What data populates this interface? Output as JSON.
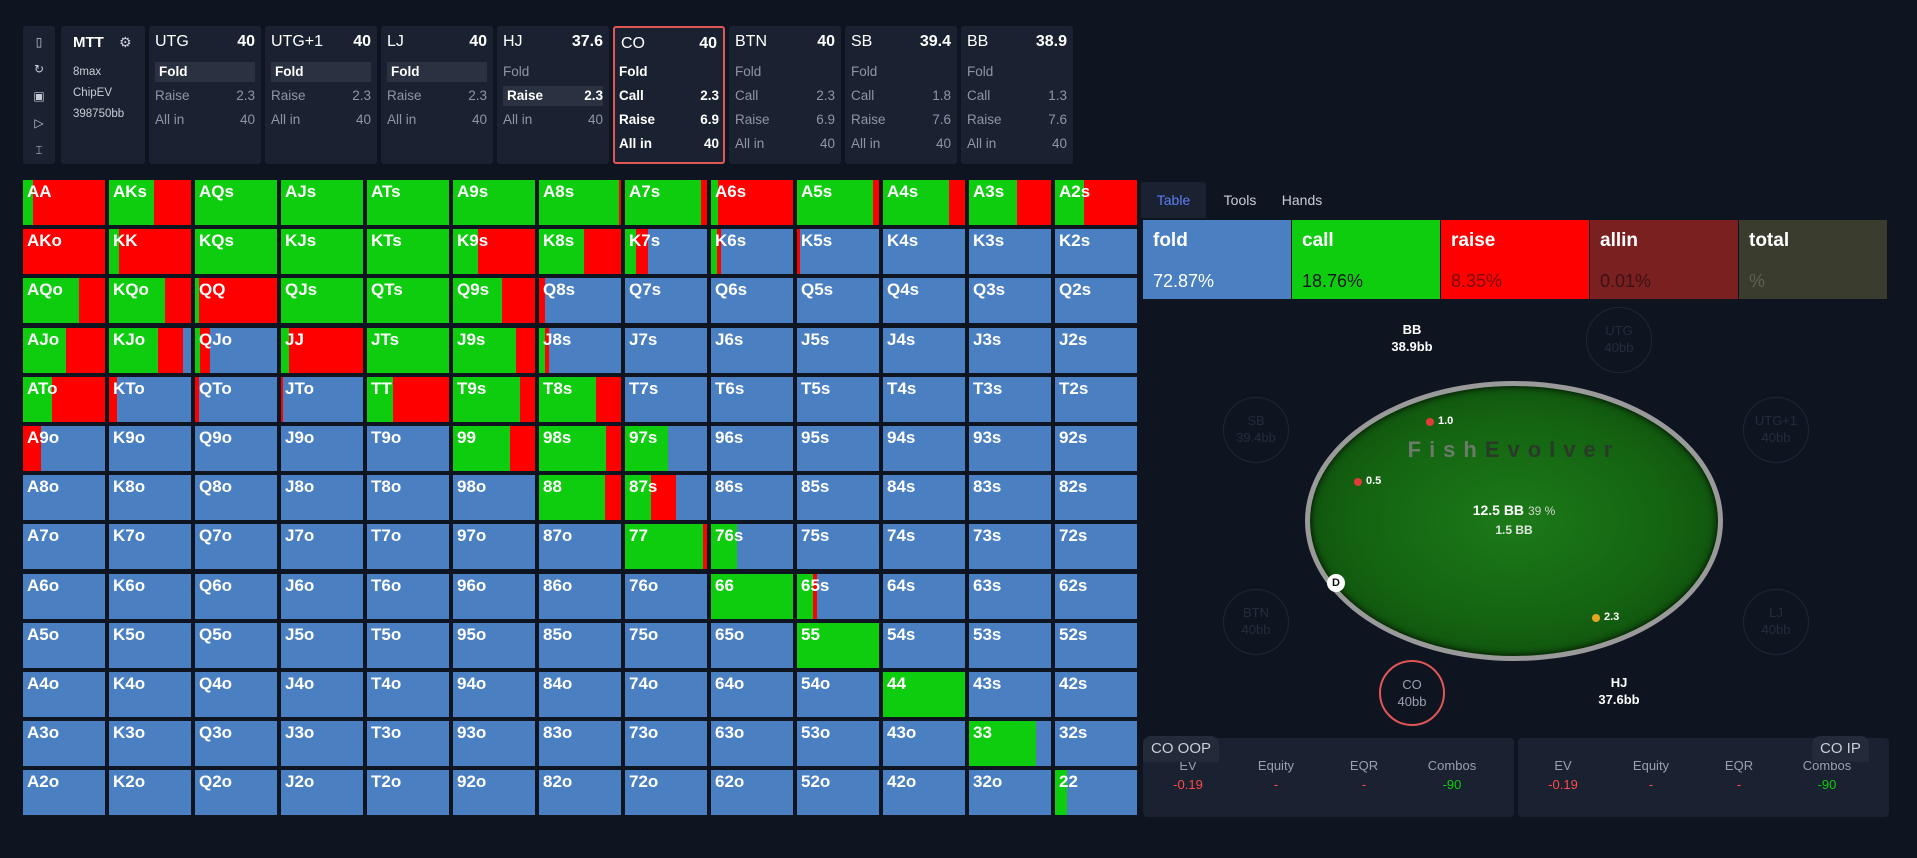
{
  "toolbar": {
    "icons": [
      "file-icon",
      "refresh-icon",
      "save-icon",
      "play-icon",
      "text-cursor-icon"
    ],
    "glyphs": [
      "▯",
      "↻",
      "▣",
      "▷",
      "⌶"
    ]
  },
  "game": {
    "title": "MTT",
    "settings_glyph": "⚙",
    "subtitle": "8max",
    "model": "ChipEV",
    "stack": "398750bb"
  },
  "positions": [
    {
      "name": "UTG",
      "stack": "40",
      "actions": [
        {
          "label": "Fold",
          "value": "",
          "state": "sel"
        },
        {
          "label": "Raise",
          "value": "2.3",
          "state": ""
        },
        {
          "label": "All in",
          "value": "40",
          "state": ""
        }
      ]
    },
    {
      "name": "UTG+1",
      "stack": "40",
      "actions": [
        {
          "label": "Fold",
          "value": "",
          "state": "sel"
        },
        {
          "label": "Raise",
          "value": "2.3",
          "state": ""
        },
        {
          "label": "All in",
          "value": "40",
          "state": ""
        }
      ]
    },
    {
      "name": "LJ",
      "stack": "40",
      "actions": [
        {
          "label": "Fold",
          "value": "",
          "state": "sel"
        },
        {
          "label": "Raise",
          "value": "2.3",
          "state": ""
        },
        {
          "label": "All in",
          "value": "40",
          "state": ""
        }
      ]
    },
    {
      "name": "HJ",
      "stack": "37.6",
      "actions": [
        {
          "label": "Fold",
          "value": "",
          "state": ""
        },
        {
          "label": "Raise",
          "value": "2.3",
          "state": "sel"
        },
        {
          "label": "All in",
          "value": "40",
          "state": ""
        }
      ]
    },
    {
      "name": "CO",
      "stack": "40",
      "active": true,
      "actions": [
        {
          "label": "Fold",
          "value": "",
          "state": "hi"
        },
        {
          "label": "Call",
          "value": "2.3",
          "state": "hi"
        },
        {
          "label": "Raise",
          "value": "6.9",
          "state": "hi"
        },
        {
          "label": "All in",
          "value": "40",
          "state": "hi"
        }
      ]
    },
    {
      "name": "BTN",
      "stack": "40",
      "actions": [
        {
          "label": "Fold",
          "value": "",
          "state": ""
        },
        {
          "label": "Call",
          "value": "2.3",
          "state": ""
        },
        {
          "label": "Raise",
          "value": "6.9",
          "state": ""
        },
        {
          "label": "All in",
          "value": "40",
          "state": ""
        }
      ]
    },
    {
      "name": "SB",
      "stack": "39.4",
      "actions": [
        {
          "label": "Fold",
          "value": "",
          "state": ""
        },
        {
          "label": "Call",
          "value": "1.8",
          "state": ""
        },
        {
          "label": "Raise",
          "value": "7.6",
          "state": ""
        },
        {
          "label": "All in",
          "value": "40",
          "state": ""
        }
      ]
    },
    {
      "name": "BB",
      "stack": "38.9",
      "actions": [
        {
          "label": "Fold",
          "value": "",
          "state": ""
        },
        {
          "label": "Call",
          "value": "1.3",
          "state": ""
        },
        {
          "label": "Raise",
          "value": "7.6",
          "state": ""
        },
        {
          "label": "All in",
          "value": "40",
          "state": ""
        }
      ]
    }
  ],
  "colors": {
    "fold": "#4a7fc1",
    "call": "#0ecd0e",
    "raise": "#ff0000",
    "allin": "#7a2020",
    "total": "#3a3d2e"
  },
  "grid": {
    "labels": [
      [
        "AA",
        "AKs",
        "AQs",
        "AJs",
        "ATs",
        "A9s",
        "A8s",
        "A7s",
        "A6s",
        "A5s",
        "A4s",
        "A3s",
        "A2s"
      ],
      [
        "AKo",
        "KK",
        "KQs",
        "KJs",
        "KTs",
        "K9s",
        "K8s",
        "K7s",
        "K6s",
        "K5s",
        "K4s",
        "K3s",
        "K2s"
      ],
      [
        "AQo",
        "KQo",
        "QQ",
        "QJs",
        "QTs",
        "Q9s",
        "Q8s",
        "Q7s",
        "Q6s",
        "Q5s",
        "Q4s",
        "Q3s",
        "Q2s"
      ],
      [
        "AJo",
        "KJo",
        "QJo",
        "JJ",
        "JTs",
        "J9s",
        "J8s",
        "J7s",
        "J6s",
        "J5s",
        "J4s",
        "J3s",
        "J2s"
      ],
      [
        "ATo",
        "KTo",
        "QTo",
        "JTo",
        "TT",
        "T9s",
        "T8s",
        "T7s",
        "T6s",
        "T5s",
        "T4s",
        "T3s",
        "T2s"
      ],
      [
        "A9o",
        "K9o",
        "Q9o",
        "J9o",
        "T9o",
        "99",
        "98s",
        "97s",
        "96s",
        "95s",
        "94s",
        "93s",
        "92s"
      ],
      [
        "A8o",
        "K8o",
        "Q8o",
        "J8o",
        "T8o",
        "98o",
        "88",
        "87s",
        "86s",
        "85s",
        "84s",
        "83s",
        "82s"
      ],
      [
        "A7o",
        "K7o",
        "Q7o",
        "J7o",
        "T7o",
        "97o",
        "87o",
        "77",
        "76s",
        "75s",
        "74s",
        "73s",
        "72s"
      ],
      [
        "A6o",
        "K6o",
        "Q6o",
        "J6o",
        "T6o",
        "96o",
        "86o",
        "76o",
        "66",
        "65s",
        "64s",
        "63s",
        "62s"
      ],
      [
        "A5o",
        "K5o",
        "Q5o",
        "J5o",
        "T5o",
        "95o",
        "85o",
        "75o",
        "65o",
        "55",
        "54s",
        "53s",
        "52s"
      ],
      [
        "A4o",
        "K4o",
        "Q4o",
        "J4o",
        "T4o",
        "94o",
        "84o",
        "74o",
        "64o",
        "54o",
        "44",
        "43s",
        "42s"
      ],
      [
        "A3o",
        "K3o",
        "Q3o",
        "J3o",
        "T3o",
        "93o",
        "83o",
        "73o",
        "63o",
        "53o",
        "43o",
        "33",
        "32s"
      ],
      [
        "A2o",
        "K2o",
        "Q2o",
        "J2o",
        "T2o",
        "92o",
        "82o",
        "72o",
        "62o",
        "52o",
        "42o",
        "32o",
        "22"
      ]
    ],
    "freqs": {
      "AA": [
        0,
        0.12,
        0.88
      ],
      "AKs": [
        0,
        0.55,
        0.45
      ],
      "AQs": [
        0,
        1,
        0
      ],
      "AJs": [
        0,
        1,
        0
      ],
      "ATs": [
        0,
        1,
        0
      ],
      "A9s": [
        0,
        1,
        0
      ],
      "A8s": [
        0,
        0.97,
        0.03
      ],
      "A7s": [
        0,
        0.93,
        0.07
      ],
      "A6s": [
        0,
        0.08,
        0.92
      ],
      "A5s": [
        0,
        0.93,
        0.07
      ],
      "A4s": [
        0,
        0.8,
        0.2
      ],
      "A3s": [
        0,
        0.58,
        0.42
      ],
      "A2s": [
        0,
        0.35,
        0.65
      ],
      "AKo": [
        0,
        0,
        1
      ],
      "KK": [
        0,
        0.12,
        0.88
      ],
      "KQs": [
        0,
        1,
        0
      ],
      "KJs": [
        0,
        1,
        0
      ],
      "KTs": [
        0,
        1,
        0
      ],
      "K9s": [
        0,
        0.3,
        0.7
      ],
      "K8s": [
        0,
        0.55,
        0.45
      ],
      "K7s": [
        0.72,
        0.13,
        0.15
      ],
      "K6s": [
        0.88,
        0.07,
        0.05
      ],
      "K5s": [
        0.96,
        0,
        0.04
      ],
      "AQo": [
        0,
        0.68,
        0.32
      ],
      "KQo": [
        0,
        0.68,
        0.32
      ],
      "QQ": [
        0,
        0.05,
        0.95
      ],
      "QJs": [
        0,
        1,
        0
      ],
      "QTs": [
        0,
        1,
        0
      ],
      "Q9s": [
        0,
        0.6,
        0.4
      ],
      "Q8s": [
        0.93,
        0,
        0.07
      ],
      "AJo": [
        0,
        0.52,
        0.48
      ],
      "KJo": [
        0.1,
        0.6,
        0.3
      ],
      "QJo": [
        0.82,
        0.06,
        0.12
      ],
      "JJ": [
        0,
        0.1,
        0.9
      ],
      "JTs": [
        0,
        1,
        0
      ],
      "J9s": [
        0,
        0.77,
        0.23
      ],
      "J8s": [
        0.88,
        0.07,
        0.05
      ],
      "ATo": [
        0,
        0.35,
        0.65
      ],
      "KTo": [
        0.9,
        0,
        0.1
      ],
      "QTo": [
        0.95,
        0,
        0.05
      ],
      "JTo": [
        0.97,
        0,
        0.03
      ],
      "TT": [
        0,
        0.32,
        0.68
      ],
      "T9s": [
        0,
        0.82,
        0.18
      ],
      "T8s": [
        0,
        0.7,
        0.3
      ],
      "A9o": [
        0.78,
        0,
        0.22
      ],
      "99": [
        0,
        0.7,
        0.3
      ],
      "98s": [
        0,
        0.82,
        0.18
      ],
      "97s": [
        0.48,
        0.52,
        0
      ],
      "88": [
        0,
        0.8,
        0.2
      ],
      "87s": [
        0.38,
        0.32,
        0.3
      ],
      "77": [
        0,
        0.95,
        0.05
      ],
      "76s": [
        0.68,
        0.32,
        0
      ],
      "66": [
        0,
        1,
        0
      ],
      "65s": [
        0.75,
        0.2,
        0.05
      ],
      "55": [
        0,
        1,
        0
      ],
      "44": [
        0,
        1,
        0
      ],
      "33": [
        0.18,
        0.82,
        0
      ],
      "22": [
        0.85,
        0.15,
        0
      ]
    }
  },
  "panel": {
    "tabs": [
      "Table",
      "Tools",
      "Hands"
    ],
    "summary": [
      {
        "key": "fold",
        "label": "fold",
        "value": "72.87%",
        "bg": "#4a7fc1",
        "text": "#ffffff"
      },
      {
        "key": "call",
        "label": "call",
        "value": "18.76%",
        "bg": "#0ecd0e",
        "text": "#0f1421"
      },
      {
        "key": "raise",
        "label": "raise",
        "value": "8.35%",
        "bg": "#ff0000",
        "text": "#7a0a0a"
      },
      {
        "key": "allin",
        "label": "allin",
        "value": "0.01%",
        "bg": "#7a2020",
        "text": "#3c1212"
      },
      {
        "key": "total",
        "label": "total",
        "value": "%",
        "bg": "#3a3d2e",
        "text": "#5e6150"
      }
    ]
  },
  "table": {
    "brand_a": "Fish",
    "brand_b": "Evolver",
    "pot": "12.5 BB",
    "pot_pct": "39 %",
    "pot_sub": "1.5 BB",
    "seats": [
      {
        "name": "BB",
        "stack": "38.9bb",
        "style": "on"
      },
      {
        "name": "UTG",
        "stack": "40bb",
        "style": "dim"
      },
      {
        "name": "SB",
        "stack": "39.4bb",
        "style": "dim"
      },
      {
        "name": "UTG+1",
        "stack": "40bb",
        "style": "dim"
      },
      {
        "name": "BTN",
        "stack": "40bb",
        "style": "dim"
      },
      {
        "name": "LJ",
        "stack": "40bb",
        "style": "dim"
      },
      {
        "name": "CO",
        "stack": "40bb",
        "style": "hero"
      },
      {
        "name": "HJ",
        "stack": "37.6bb",
        "style": "on"
      }
    ],
    "chips": [
      {
        "label": "1.0",
        "color": "#e23b3b"
      },
      {
        "label": "0.5",
        "color": "#e23b3b"
      },
      {
        "label": "2.3",
        "color": "#e8a620"
      }
    ],
    "dealer": "D"
  },
  "stats": {
    "boxes": [
      {
        "title": "CO OOP",
        "headers": [
          "EV",
          "Equity",
          "EQR",
          "Combos"
        ],
        "values": [
          "-0.19",
          "-",
          "-",
          "-90"
        ]
      },
      {
        "title": "CO IP",
        "headers": [
          "EV",
          "Equity",
          "EQR",
          "Combos"
        ],
        "values": [
          "-0.19",
          "-",
          "-",
          "-90"
        ]
      }
    ],
    "value_colors": [
      "#ff4a4a",
      "#ff4a4a",
      "#ff4a4a",
      "#0ecd0e"
    ]
  }
}
